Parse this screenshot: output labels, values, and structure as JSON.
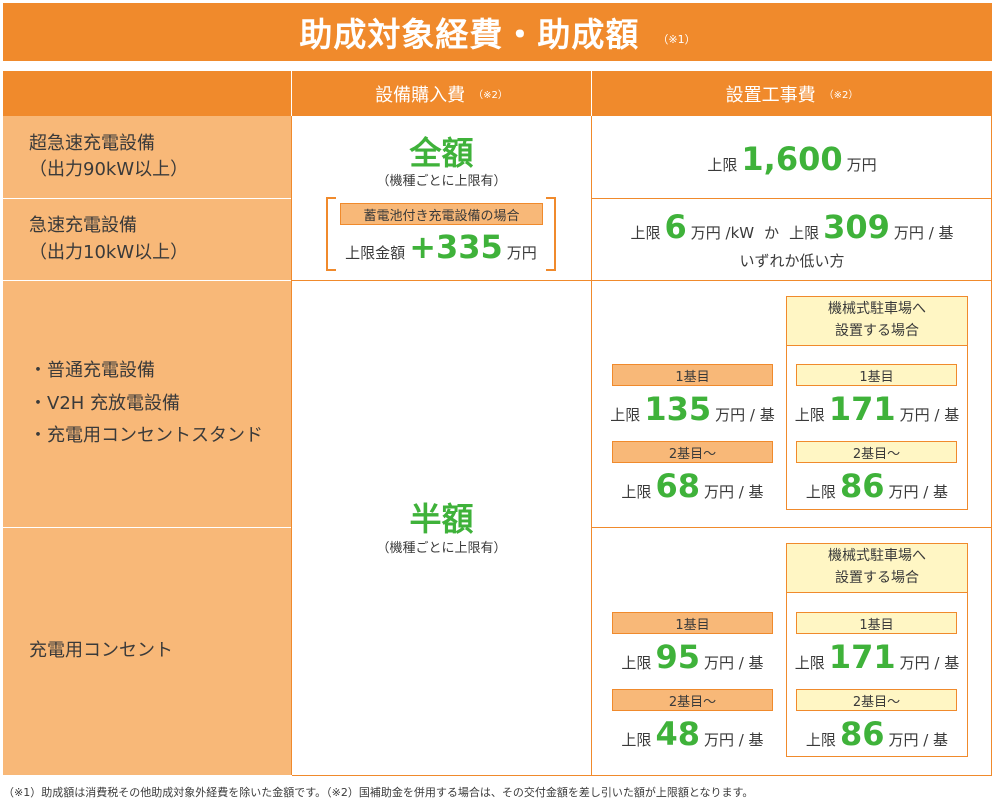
{
  "title": {
    "text": "助成対象経費・助成額",
    "note": "（※1）"
  },
  "columns": {
    "equipment": {
      "label": "設備購入費",
      "note": "（※2）"
    },
    "construction": {
      "label": "設置工事費",
      "note": "（※2）"
    }
  },
  "rows": {
    "ultra_fast": {
      "line1": "超急速充電設備",
      "line2": "（出力90kW以上）"
    },
    "fast": {
      "line1": "急速充電設備",
      "line2": "（出力10kW以上）"
    },
    "normal": {
      "line1": "・普通充電設備",
      "line2": "・V2H 充放電設備",
      "line3": "・充電用コンセントスタンド"
    },
    "outlet": {
      "line1": "充電用コンセント"
    }
  },
  "equipment_fast": {
    "big": "全額",
    "sub": "（機種ごとに上限有）",
    "battery_tag": "蓄電池付き充電設備の場合",
    "limit_label": "上限金額",
    "limit_value": "+335",
    "limit_unit": "万円"
  },
  "equipment_normal": {
    "big": "半額",
    "sub": "（機種ごとに上限有）"
  },
  "construction_ultra": {
    "prefix": "上限",
    "value": "1,600",
    "unit": "万円"
  },
  "construction_fast": {
    "prefix1": "上限",
    "value1": "6",
    "unit1": "万円 /kW",
    "or": "か",
    "prefix2": "上限",
    "value2": "309",
    "unit2": "万円 / 基",
    "line2": "いずれか低い方"
  },
  "mech_header": {
    "line1": "機械式駐車場へ",
    "line2": "設置する場合"
  },
  "first": "1基目",
  "second": "2基目〜",
  "limit": "上限",
  "per_unit": "万円 / 基",
  "normal_std": {
    "v1": "135",
    "v2": "68"
  },
  "normal_mech": {
    "v1": "171",
    "v2": "86"
  },
  "outlet_std": {
    "v1": "95",
    "v2": "48"
  },
  "outlet_mech": {
    "v1": "171",
    "v2": "86"
  },
  "footnote": "（※1）助成額は消費税その他助成対象外経費を除いた金額です。（※2）国補助金を併用する場合は、その交付金額を差し引いた額が上限額となります。"
}
